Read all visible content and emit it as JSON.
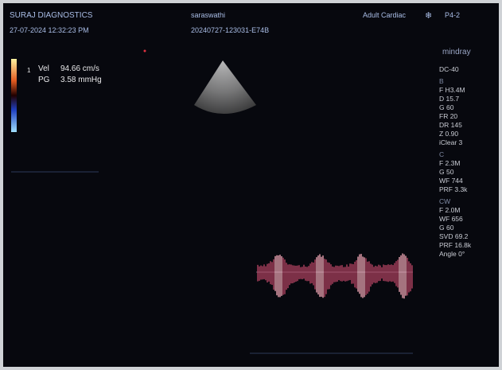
{
  "header": {
    "clinic": "SURAJ DIAGNOSTICS",
    "datetime": "27-07-2024  12:32:23 PM",
    "patient": "saraswathi",
    "exam_id": "20240727-123031-E74B",
    "preset": "Adult Cardiac",
    "probe": "P4-2"
  },
  "brand": "mindray",
  "measurement": {
    "index": "1",
    "vel_label": "Vel",
    "vel_value": "94.66 cm/s",
    "pg_label": "PG",
    "pg_value": "3.58 mmHg"
  },
  "panel": {
    "mode": "DC-40",
    "groups": [
      {
        "title": "B",
        "items": [
          "F H3.4M",
          "D 15.7",
          "G 60",
          "FR 20",
          "DR 145",
          "Z 0.90",
          "iClear 3"
        ]
      },
      {
        "title": "C",
        "items": [
          "F 2.3M",
          "G 50",
          "WF 744",
          "PRF 3.3k"
        ]
      },
      {
        "title": "CW",
        "items": [
          "F 2.0M",
          "WF 656",
          "G 60",
          "SVD 69.2",
          "PRF 16.8k",
          "Angle 0°"
        ]
      }
    ]
  }
}
